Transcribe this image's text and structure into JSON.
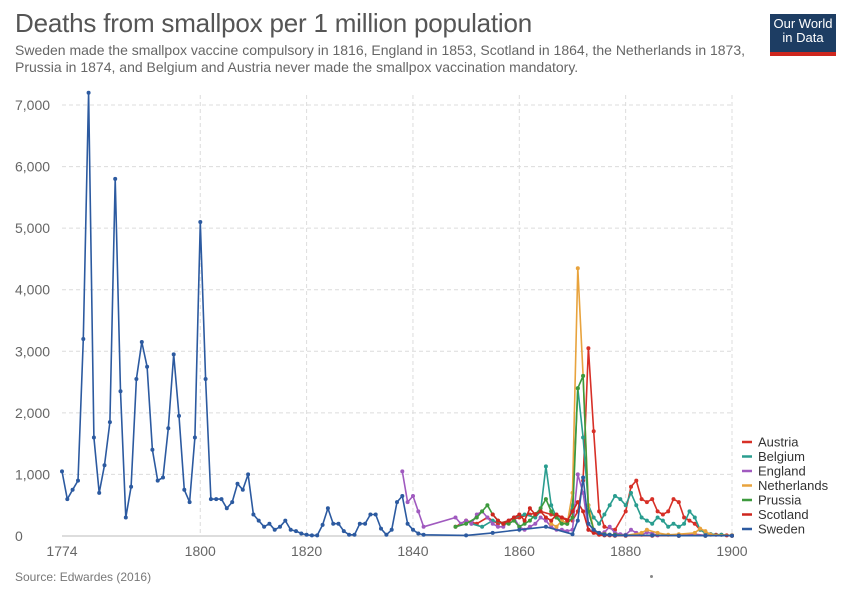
{
  "title": "Deaths from smallpox per 1 million population",
  "subtitle": "Sweden made the smallpox vaccine compulsory in 1816, England in 1853, Scotland in 1864, the Netherlands in 1873, Prussia in 1874, and Belgium and Austria never made the smallpox vaccination mandatory.",
  "logo": {
    "line1": "Our World",
    "line2": "in Data",
    "bg_color": "#1d3d63",
    "accent_color": "#ce261e"
  },
  "source": "Source: Edwardes (2016)",
  "chart_data": {
    "type": "line",
    "title": "Deaths from smallpox per 1 million population",
    "xlabel": "",
    "ylabel": "",
    "xlim": [
      1774,
      1900
    ],
    "ylim": [
      0,
      7000
    ],
    "x_ticks": [
      1774,
      1800,
      1820,
      1840,
      1860,
      1880,
      1900
    ],
    "y_ticks": [
      0,
      1000,
      2000,
      3000,
      4000,
      5000,
      6000,
      7000
    ],
    "y_tick_labels": [
      "0",
      "1,000",
      "2,000",
      "3,000",
      "4,000",
      "5,000",
      "6,000",
      "7,000"
    ],
    "grid": true,
    "legend_position": "right",
    "series": [
      {
        "name": "Austria",
        "color": "#d73027",
        "points": [
          [
            1848,
            150
          ],
          [
            1850,
            250
          ],
          [
            1852,
            200
          ],
          [
            1854,
            300
          ],
          [
            1856,
            200
          ],
          [
            1858,
            250
          ],
          [
            1860,
            300
          ],
          [
            1862,
            350
          ],
          [
            1864,
            400
          ],
          [
            1866,
            350
          ],
          [
            1868,
            300
          ],
          [
            1870,
            250
          ],
          [
            1871,
            400
          ],
          [
            1872,
            900
          ],
          [
            1873,
            3050
          ],
          [
            1874,
            1700
          ],
          [
            1875,
            400
          ],
          [
            1876,
            150
          ],
          [
            1878,
            100
          ],
          [
            1880,
            400
          ],
          [
            1881,
            800
          ],
          [
            1882,
            900
          ],
          [
            1883,
            600
          ],
          [
            1884,
            550
          ],
          [
            1885,
            600
          ],
          [
            1886,
            400
          ],
          [
            1887,
            350
          ],
          [
            1888,
            400
          ],
          [
            1889,
            600
          ],
          [
            1890,
            550
          ],
          [
            1891,
            300
          ],
          [
            1892,
            250
          ],
          [
            1893,
            200
          ],
          [
            1894,
            100
          ],
          [
            1895,
            50
          ],
          [
            1896,
            30
          ],
          [
            1897,
            20
          ],
          [
            1898,
            20
          ],
          [
            1899,
            10
          ],
          [
            1900,
            10
          ]
        ]
      },
      {
        "name": "Belgium",
        "color": "#2a9d8f",
        "points": [
          [
            1851,
            200
          ],
          [
            1853,
            150
          ],
          [
            1855,
            250
          ],
          [
            1857,
            200
          ],
          [
            1859,
            300
          ],
          [
            1861,
            350
          ],
          [
            1863,
            300
          ],
          [
            1864,
            400
          ],
          [
            1865,
            1130
          ],
          [
            1866,
            500
          ],
          [
            1867,
            300
          ],
          [
            1868,
            250
          ],
          [
            1869,
            200
          ],
          [
            1870,
            500
          ],
          [
            1871,
            2400
          ],
          [
            1872,
            1600
          ],
          [
            1873,
            500
          ],
          [
            1874,
            300
          ],
          [
            1875,
            200
          ],
          [
            1876,
            350
          ],
          [
            1877,
            500
          ],
          [
            1878,
            650
          ],
          [
            1879,
            600
          ],
          [
            1880,
            500
          ],
          [
            1881,
            700
          ],
          [
            1882,
            500
          ],
          [
            1883,
            300
          ],
          [
            1884,
            250
          ],
          [
            1885,
            200
          ],
          [
            1886,
            300
          ],
          [
            1887,
            250
          ],
          [
            1888,
            150
          ],
          [
            1889,
            200
          ],
          [
            1890,
            150
          ],
          [
            1891,
            200
          ],
          [
            1892,
            400
          ],
          [
            1893,
            300
          ],
          [
            1894,
            100
          ],
          [
            1895,
            50
          ],
          [
            1896,
            30
          ],
          [
            1898,
            20
          ],
          [
            1900,
            10
          ]
        ]
      },
      {
        "name": "England",
        "color": "#a05abf",
        "points": [
          [
            1838,
            1050
          ],
          [
            1839,
            550
          ],
          [
            1840,
            650
          ],
          [
            1841,
            400
          ],
          [
            1842,
            150
          ],
          [
            1848,
            300
          ],
          [
            1849,
            200
          ],
          [
            1850,
            250
          ],
          [
            1851,
            200
          ],
          [
            1852,
            350
          ],
          [
            1853,
            400
          ],
          [
            1854,
            300
          ],
          [
            1855,
            200
          ],
          [
            1856,
            150
          ],
          [
            1857,
            150
          ],
          [
            1858,
            250
          ],
          [
            1859,
            300
          ],
          [
            1860,
            150
          ],
          [
            1861,
            100
          ],
          [
            1862,
            150
          ],
          [
            1863,
            200
          ],
          [
            1864,
            300
          ],
          [
            1865,
            250
          ],
          [
            1866,
            150
          ],
          [
            1867,
            100
          ],
          [
            1868,
            100
          ],
          [
            1869,
            80
          ],
          [
            1870,
            100
          ],
          [
            1871,
            1000
          ],
          [
            1872,
            700
          ],
          [
            1873,
            100
          ],
          [
            1874,
            80
          ],
          [
            1875,
            40
          ],
          [
            1876,
            60
          ],
          [
            1877,
            150
          ],
          [
            1878,
            50
          ],
          [
            1879,
            30
          ],
          [
            1880,
            20
          ],
          [
            1881,
            100
          ],
          [
            1882,
            50
          ],
          [
            1883,
            20
          ],
          [
            1884,
            60
          ],
          [
            1885,
            40
          ],
          [
            1886,
            10
          ],
          [
            1890,
            5
          ],
          [
            1893,
            30
          ],
          [
            1895,
            10
          ],
          [
            1900,
            5
          ]
        ]
      },
      {
        "name": "Netherlands",
        "color": "#e8a33d",
        "points": [
          [
            1866,
            200
          ],
          [
            1867,
            150
          ],
          [
            1868,
            250
          ],
          [
            1869,
            200
          ],
          [
            1870,
            700
          ],
          [
            1871,
            4350
          ],
          [
            1872,
            2600
          ],
          [
            1873,
            500
          ],
          [
            1874,
            100
          ],
          [
            1875,
            50
          ],
          [
            1876,
            30
          ],
          [
            1877,
            20
          ],
          [
            1878,
            20
          ],
          [
            1880,
            10
          ],
          [
            1883,
            50
          ],
          [
            1884,
            100
          ],
          [
            1886,
            50
          ],
          [
            1888,
            20
          ],
          [
            1890,
            30
          ],
          [
            1893,
            50
          ],
          [
            1894,
            120
          ],
          [
            1895,
            80
          ],
          [
            1896,
            20
          ],
          [
            1900,
            10
          ]
        ]
      },
      {
        "name": "Prussia",
        "color": "#3d9a3d",
        "points": [
          [
            1848,
            150
          ],
          [
            1850,
            200
          ],
          [
            1852,
            300
          ],
          [
            1853,
            400
          ],
          [
            1854,
            500
          ],
          [
            1855,
            350
          ],
          [
            1856,
            250
          ],
          [
            1857,
            200
          ],
          [
            1858,
            200
          ],
          [
            1859,
            250
          ],
          [
            1860,
            150
          ],
          [
            1861,
            200
          ],
          [
            1862,
            250
          ],
          [
            1863,
            350
          ],
          [
            1864,
            450
          ],
          [
            1865,
            600
          ],
          [
            1866,
            400
          ],
          [
            1867,
            300
          ],
          [
            1868,
            200
          ],
          [
            1869,
            200
          ],
          [
            1870,
            300
          ],
          [
            1871,
            2400
          ],
          [
            1872,
            2600
          ],
          [
            1873,
            400
          ],
          [
            1874,
            100
          ],
          [
            1875,
            40
          ],
          [
            1876,
            30
          ],
          [
            1877,
            20
          ],
          [
            1878,
            20
          ],
          [
            1880,
            10
          ],
          [
            1885,
            10
          ],
          [
            1890,
            5
          ],
          [
            1895,
            5
          ],
          [
            1900,
            5
          ]
        ]
      },
      {
        "name": "Scotland",
        "color": "#ce261e",
        "points": [
          [
            1855,
            350
          ],
          [
            1856,
            250
          ],
          [
            1857,
            200
          ],
          [
            1858,
            250
          ],
          [
            1859,
            300
          ],
          [
            1860,
            350
          ],
          [
            1861,
            250
          ],
          [
            1862,
            450
          ],
          [
            1863,
            350
          ],
          [
            1864,
            400
          ],
          [
            1865,
            300
          ],
          [
            1866,
            250
          ],
          [
            1867,
            350
          ],
          [
            1868,
            300
          ],
          [
            1869,
            250
          ],
          [
            1870,
            400
          ],
          [
            1871,
            550
          ],
          [
            1872,
            400
          ],
          [
            1873,
            100
          ],
          [
            1874,
            50
          ],
          [
            1875,
            20
          ],
          [
            1876,
            10
          ],
          [
            1877,
            10
          ],
          [
            1878,
            5
          ],
          [
            1880,
            5
          ],
          [
            1885,
            5
          ],
          [
            1890,
            5
          ],
          [
            1895,
            5
          ],
          [
            1900,
            5
          ]
        ]
      },
      {
        "name": "Sweden",
        "color": "#2c5aa0",
        "points": [
          [
            1774,
            1050
          ],
          [
            1775,
            600
          ],
          [
            1776,
            750
          ],
          [
            1777,
            900
          ],
          [
            1778,
            3200
          ],
          [
            1779,
            7200
          ],
          [
            1780,
            1600
          ],
          [
            1781,
            700
          ],
          [
            1782,
            1150
          ],
          [
            1783,
            1850
          ],
          [
            1784,
            5800
          ],
          [
            1785,
            2350
          ],
          [
            1786,
            300
          ],
          [
            1787,
            800
          ],
          [
            1788,
            2550
          ],
          [
            1789,
            3150
          ],
          [
            1790,
            2750
          ],
          [
            1791,
            1400
          ],
          [
            1792,
            900
          ],
          [
            1793,
            950
          ],
          [
            1794,
            1750
          ],
          [
            1795,
            2950
          ],
          [
            1796,
            1950
          ],
          [
            1797,
            750
          ],
          [
            1798,
            550
          ],
          [
            1799,
            1600
          ],
          [
            1800,
            5100
          ],
          [
            1801,
            2550
          ],
          [
            1802,
            600
          ],
          [
            1803,
            600
          ],
          [
            1804,
            600
          ],
          [
            1805,
            450
          ],
          [
            1806,
            550
          ],
          [
            1807,
            850
          ],
          [
            1808,
            750
          ],
          [
            1809,
            1000
          ],
          [
            1810,
            350
          ],
          [
            1811,
            250
          ],
          [
            1812,
            150
          ],
          [
            1813,
            200
          ],
          [
            1814,
            100
          ],
          [
            1815,
            150
          ],
          [
            1816,
            250
          ],
          [
            1817,
            100
          ],
          [
            1818,
            80
          ],
          [
            1819,
            40
          ],
          [
            1820,
            20
          ],
          [
            1821,
            10
          ],
          [
            1822,
            10
          ],
          [
            1823,
            180
          ],
          [
            1824,
            450
          ],
          [
            1825,
            200
          ],
          [
            1826,
            200
          ],
          [
            1827,
            80
          ],
          [
            1828,
            20
          ],
          [
            1829,
            20
          ],
          [
            1830,
            200
          ],
          [
            1831,
            200
          ],
          [
            1832,
            350
          ],
          [
            1833,
            350
          ],
          [
            1834,
            120
          ],
          [
            1835,
            20
          ],
          [
            1836,
            100
          ],
          [
            1837,
            550
          ],
          [
            1838,
            650
          ],
          [
            1839,
            200
          ],
          [
            1840,
            100
          ],
          [
            1841,
            40
          ],
          [
            1842,
            20
          ],
          [
            1850,
            10
          ],
          [
            1855,
            50
          ],
          [
            1860,
            100
          ],
          [
            1865,
            150
          ],
          [
            1870,
            30
          ],
          [
            1871,
            250
          ],
          [
            1872,
            950
          ],
          [
            1873,
            200
          ],
          [
            1874,
            100
          ],
          [
            1875,
            50
          ],
          [
            1876,
            20
          ],
          [
            1877,
            20
          ],
          [
            1878,
            10
          ],
          [
            1880,
            10
          ],
          [
            1885,
            10
          ],
          [
            1890,
            5
          ],
          [
            1895,
            5
          ],
          [
            1900,
            5
          ]
        ]
      }
    ]
  }
}
